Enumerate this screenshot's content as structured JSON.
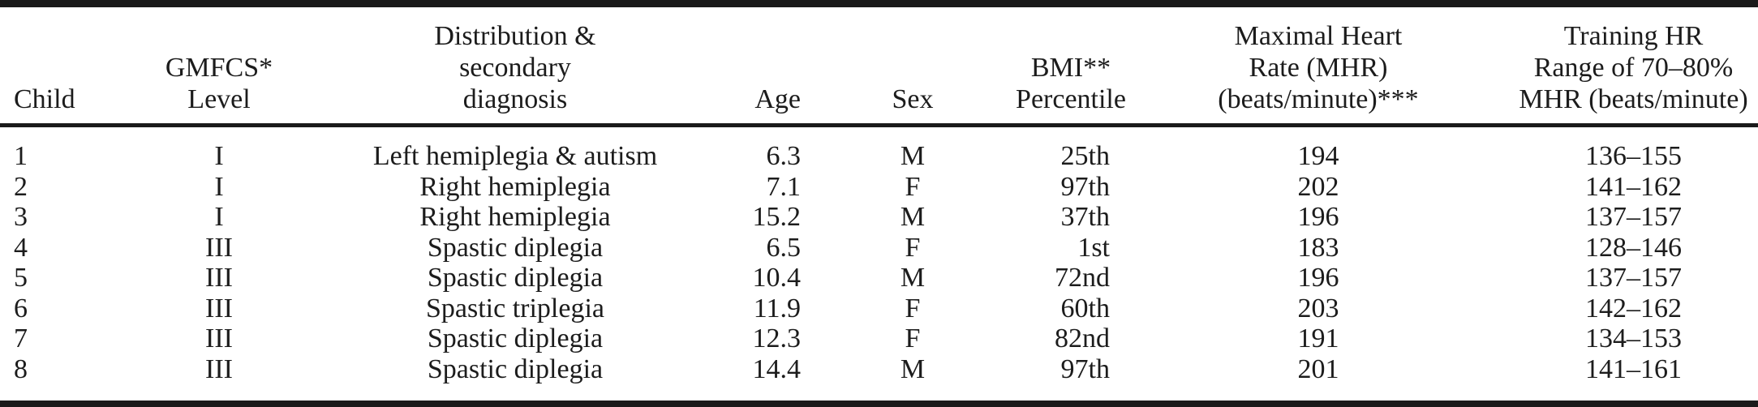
{
  "page": {
    "background": "#ffffff",
    "text_color": "#1c1c1c",
    "rule_color": "#1a1a1a"
  },
  "table": {
    "columns": [
      {
        "id": "child",
        "lines": [
          "Child"
        ]
      },
      {
        "id": "gmfcs",
        "lines": [
          "GMFCS*",
          "Level"
        ]
      },
      {
        "id": "diagnosis",
        "lines": [
          "Distribution &",
          "secondary",
          "diagnosis"
        ]
      },
      {
        "id": "age",
        "lines": [
          "Age"
        ]
      },
      {
        "id": "sex",
        "lines": [
          "Sex"
        ]
      },
      {
        "id": "bmi",
        "lines": [
          "BMI**",
          "Percentile"
        ]
      },
      {
        "id": "mhr",
        "lines": [
          "Maximal Heart",
          "Rate (MHR)",
          "(beats/minute)***"
        ]
      },
      {
        "id": "training",
        "lines": [
          "Training HR",
          "Range of 70–80%",
          "MHR (beats/minute)"
        ]
      }
    ],
    "rows": [
      {
        "child": "1",
        "gmfcs": "I",
        "diagnosis": "Left hemiplegia & autism",
        "age": "6.3",
        "sex": "M",
        "bmi": "25th",
        "mhr": "194",
        "training": "136–155"
      },
      {
        "child": "2",
        "gmfcs": "I",
        "diagnosis": "Right hemiplegia",
        "age": "7.1",
        "sex": "F",
        "bmi": "97th",
        "mhr": "202",
        "training": "141–162"
      },
      {
        "child": "3",
        "gmfcs": "I",
        "diagnosis": "Right hemiplegia",
        "age": "15.2",
        "sex": "M",
        "bmi": "37th",
        "mhr": "196",
        "training": "137–157"
      },
      {
        "child": "4",
        "gmfcs": "III",
        "diagnosis": "Spastic diplegia",
        "age": "6.5",
        "sex": "F",
        "bmi": "1st",
        "mhr": "183",
        "training": "128–146"
      },
      {
        "child": "5",
        "gmfcs": "III",
        "diagnosis": "Spastic diplegia",
        "age": "10.4",
        "sex": "M",
        "bmi": "72nd",
        "mhr": "196",
        "training": "137–157"
      },
      {
        "child": "6",
        "gmfcs": "III",
        "diagnosis": "Spastic triplegia",
        "age": "11.9",
        "sex": "F",
        "bmi": "60th",
        "mhr": "203",
        "training": "142–162"
      },
      {
        "child": "7",
        "gmfcs": "III",
        "diagnosis": "Spastic diplegia",
        "age": "12.3",
        "sex": "F",
        "bmi": "82nd",
        "mhr": "191",
        "training": "134–153"
      },
      {
        "child": "8",
        "gmfcs": "III",
        "diagnosis": "Spastic diplegia",
        "age": "14.4",
        "sex": "M",
        "bmi": "97th",
        "mhr": "201",
        "training": "141–161"
      }
    ]
  }
}
